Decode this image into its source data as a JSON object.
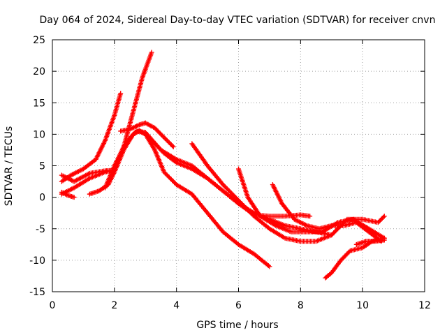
{
  "chart_data": {
    "type": "scatter",
    "title": "Day 064 of 2024, Sidereal Day-to-day VTEC variation (SDTVAR) for receiver cnvn",
    "xlabel": "GPS time / hours",
    "ylabel": "SDTVAR / TECUs",
    "xlim": [
      0,
      12
    ],
    "ylim": [
      -15,
      25
    ],
    "xticks": [
      0,
      2,
      4,
      6,
      8,
      10,
      12
    ],
    "yticks": [
      -15,
      -10,
      -5,
      0,
      5,
      10,
      15,
      20,
      25
    ],
    "grid": true,
    "marker": "plus",
    "color": "#ff0000",
    "series": [
      {
        "name": "track-1",
        "x": [
          0.3,
          0.6,
          1.0,
          1.4,
          1.7,
          2.0,
          2.2
        ],
        "y": [
          2.5,
          3.5,
          4.5,
          6.0,
          9.0,
          13.0,
          16.5
        ]
      },
      {
        "name": "track-2",
        "x": [
          0.3,
          0.7,
          1.2,
          1.7,
          2.0,
          2.3,
          2.6,
          2.9,
          3.2
        ],
        "y": [
          0.5,
          1.5,
          3.0,
          4.0,
          4.3,
          8.0,
          13.5,
          19.0,
          23.0
        ]
      },
      {
        "name": "track-3",
        "x": [
          0.3,
          0.7,
          1.2,
          1.7,
          2.0,
          2.3,
          2.7,
          3.0,
          3.5,
          4.0,
          4.5,
          5.0,
          5.5,
          6.0,
          6.5,
          7.0,
          7.5,
          8.0,
          8.3
        ],
        "y": [
          3.5,
          2.5,
          3.8,
          4.2,
          4.3,
          8.0,
          10.5,
          10.3,
          7.5,
          6.0,
          5.0,
          3.0,
          1.0,
          -1.0,
          -2.8,
          -3.0,
          -3.0,
          -2.8,
          -3.0
        ]
      },
      {
        "name": "track-4",
        "x": [
          0.3,
          0.5,
          0.7
        ],
        "y": [
          0.8,
          0.3,
          0.0
        ]
      },
      {
        "name": "track-5",
        "x": [
          1.2,
          1.5,
          1.8,
          2.0,
          2.3,
          2.6,
          2.8,
          3.0,
          3.3,
          3.6,
          4.0,
          4.5,
          5.0,
          5.5,
          6.0,
          6.5,
          7.0
        ],
        "y": [
          0.5,
          1.0,
          2.0,
          4.0,
          7.5,
          10.0,
          10.6,
          10.0,
          7.5,
          4.0,
          2.0,
          0.5,
          -2.5,
          -5.5,
          -7.5,
          -9.0,
          -11.0
        ]
      },
      {
        "name": "track-6",
        "x": [
          1.7,
          2.0,
          2.3,
          2.6,
          2.8,
          3.0,
          3.3,
          3.6,
          4.0,
          4.5,
          5.0,
          5.5,
          6.0,
          6.5,
          7.0,
          7.5,
          8.0,
          8.5,
          9.0
        ],
        "y": [
          1.5,
          5.0,
          8.0,
          10.0,
          10.5,
          10.0,
          8.5,
          7.0,
          5.5,
          4.5,
          3.0,
          1.0,
          -1.0,
          -2.5,
          -3.5,
          -4.5,
          -5.0,
          -5.5,
          -6.0
        ]
      },
      {
        "name": "track-7",
        "x": [
          2.2,
          2.5,
          2.8,
          3.0,
          3.3,
          3.6,
          3.9
        ],
        "y": [
          10.5,
          10.8,
          11.5,
          11.8,
          11.0,
          9.5,
          8.0
        ]
      },
      {
        "name": "track-8",
        "x": [
          4.5,
          5.0,
          5.5,
          6.0,
          6.5,
          7.0,
          7.5,
          8.0,
          8.5,
          9.0,
          9.5,
          10.0,
          10.5,
          10.7
        ],
        "y": [
          8.5,
          5.0,
          2.0,
          -0.5,
          -3.0,
          -5.0,
          -6.5,
          -7.0,
          -7.0,
          -6.0,
          -3.5,
          -3.5,
          -4.0,
          -3.0
        ]
      },
      {
        "name": "track-9",
        "x": [
          6.0,
          6.3,
          6.7,
          7.2,
          7.7,
          8.2,
          8.7,
          9.2,
          9.7,
          10.2,
          10.7
        ],
        "y": [
          4.5,
          0.0,
          -3.0,
          -4.5,
          -5.5,
          -5.5,
          -5.5,
          -4.0,
          -3.5,
          -5.0,
          -6.5
        ]
      },
      {
        "name": "track-10",
        "x": [
          7.1,
          7.4,
          7.8,
          8.2,
          8.6,
          9.0,
          9.4,
          9.8,
          10.2,
          10.6
        ],
        "y": [
          2.0,
          -1.0,
          -3.5,
          -4.5,
          -5.0,
          -4.5,
          -4.5,
          -4.0,
          -5.5,
          -7.0
        ]
      },
      {
        "name": "track-11",
        "x": [
          8.8,
          9.0,
          9.3,
          9.6,
          10.0,
          10.3,
          10.7
        ],
        "y": [
          -12.8,
          -12.0,
          -10.0,
          -8.5,
          -8.0,
          -7.0,
          -6.5
        ]
      },
      {
        "name": "track-12",
        "x": [
          9.8,
          10.1,
          10.4,
          10.7
        ],
        "y": [
          -7.5,
          -7.0,
          -7.0,
          -6.8
        ]
      }
    ]
  }
}
